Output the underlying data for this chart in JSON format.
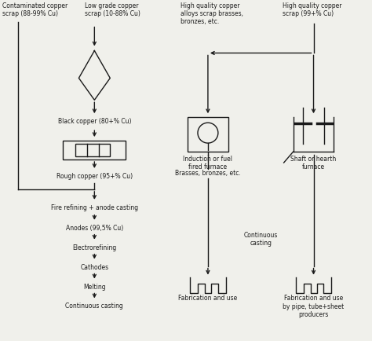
{
  "bg_color": "#f0f0eb",
  "line_color": "#1a1a1a",
  "text_color": "#1a1a1a",
  "font_size": 5.5,
  "fig_width": 4.74,
  "fig_height": 4.35,
  "labels": {
    "contam_copper": "Contaminated copper\nscrap (88-99% Cu)",
    "low_grade_copper": "Low grade copper\nscrap (10-88% Cu)",
    "black_copper": "Black copper (80+% Cu)",
    "rough_copper": "Rough copper (95+% Cu)",
    "fire_refining": "Fire refining + anode casting",
    "anodes": "Anodes (99,5% Cu)",
    "electrorefining": "Electrorefining",
    "cathodes": "Cathodes",
    "melting": "Melting",
    "continuous_casting_left": "Continuous casting",
    "hq_alloys": "High quality copper\nalloys scrap brasses,\nbronzes, etc.",
    "hq_scrap": "High quality copper\nscrap (99+% Cu)",
    "induction_furnace": "Induction or fuel\nfired furnace",
    "shaft_furnace": "Shaft or hearth\nfurnace",
    "brasses": "Brasses, bronzes, etc.",
    "continuous_casting_right": "Continuous\ncasting",
    "fab_use": "Fabrication and use",
    "fab_use_pipe": "Fabrication and use\nby pipe, tube+sheet\nproducers"
  }
}
